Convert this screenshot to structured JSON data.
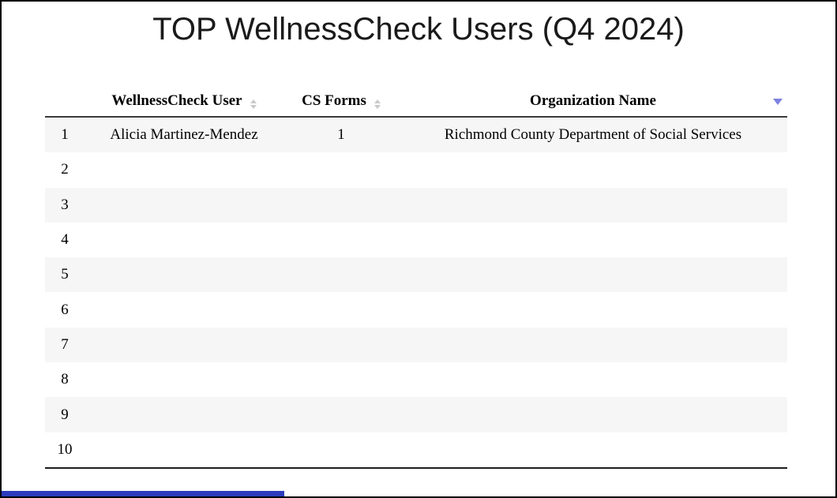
{
  "page": {
    "title": "TOP WellnessCheck Users (Q4 2024)"
  },
  "table": {
    "columns": [
      {
        "label": "WellnessCheck User",
        "sort": "unsorted"
      },
      {
        "label": "CS Forms",
        "sort": "unsorted"
      },
      {
        "label": "Organization Name",
        "sort": "descending"
      }
    ],
    "rows": [
      {
        "rank": "1",
        "user": "Alicia Martinez-Mendez",
        "cs_forms": "1",
        "organization": "Richmond County Department of Social Services"
      },
      {
        "rank": "2",
        "user": "",
        "cs_forms": "",
        "organization": ""
      },
      {
        "rank": "3",
        "user": "",
        "cs_forms": "",
        "organization": ""
      },
      {
        "rank": "4",
        "user": "",
        "cs_forms": "",
        "organization": ""
      },
      {
        "rank": "5",
        "user": "",
        "cs_forms": "",
        "organization": ""
      },
      {
        "rank": "6",
        "user": "",
        "cs_forms": "",
        "organization": ""
      },
      {
        "rank": "7",
        "user": "",
        "cs_forms": "",
        "organization": ""
      },
      {
        "rank": "8",
        "user": "",
        "cs_forms": "",
        "organization": ""
      },
      {
        "rank": "9",
        "user": "",
        "cs_forms": "",
        "organization": ""
      },
      {
        "rank": "10",
        "user": "",
        "cs_forms": "",
        "organization": ""
      }
    ]
  },
  "icons": {
    "unsorted_columns": "sort-updown-icon",
    "sorted_column": "sort-desc-icon"
  },
  "colors": {
    "sort_active": "#7d82e2",
    "sort_inactive": "#c9c9c9",
    "row_stripe": "#f6f6f6",
    "accent_bar": "#2c3cbd",
    "frame_border": "#000000"
  }
}
